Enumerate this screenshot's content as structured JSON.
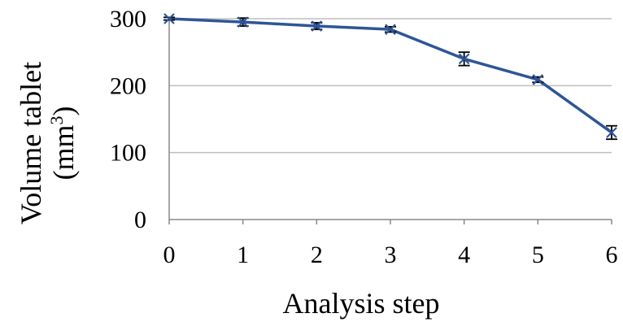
{
  "chart_data": {
    "type": "line",
    "title": "",
    "xlabel": "Analysis step",
    "ylabel": "Volume tablet",
    "ylabel_unit_base": "(mm",
    "ylabel_unit_sup": "3",
    "ylabel_unit_close": ")",
    "categories": [
      "0",
      "1",
      "2",
      "3",
      "4",
      "5",
      "6"
    ],
    "ylim": [
      0,
      300
    ],
    "yticks": [
      "0",
      "100",
      "200",
      "300"
    ],
    "grid": "horizontal",
    "legend": "none",
    "series": [
      {
        "values": [
          300,
          295,
          289,
          284,
          240,
          209,
          130
        ],
        "errors": [
          2,
          6,
          5,
          4,
          10,
          4,
          10
        ],
        "color": "#2E5597",
        "marker": "x"
      }
    ]
  }
}
